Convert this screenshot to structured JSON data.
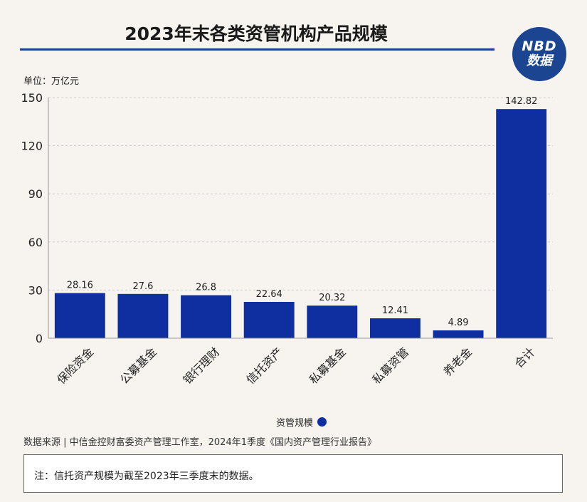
{
  "header": {
    "title": "2023年末各类资管机构产品规模",
    "logo_line1": "NBD",
    "logo_line2": "数据"
  },
  "unit_label": "单位：万亿元",
  "legend_label": "资管规模",
  "source": "数据来源 | 中信金控财富委资产管理工作室，2024年1季度《国内资产管理行业报告》",
  "note": "注：信托资产规模为截至2023年三季度末的数据。",
  "colors": {
    "bar": "#0f2fa0",
    "title_rule": "#1f3f8f",
    "logo": "#1c4591"
  },
  "chart_data": {
    "type": "bar",
    "title": "2023年末各类资管机构产品规模",
    "ylabel": "单位：万亿元",
    "categories": [
      "保险资金",
      "公募基金",
      "银行理财",
      "信托资产",
      "私募基金",
      "私募资管",
      "养老金",
      "合计"
    ],
    "series": [
      {
        "name": "资管规模",
        "values": [
          28.16,
          27.6,
          26.8,
          22.64,
          20.32,
          12.41,
          4.89,
          142.82
        ]
      }
    ],
    "value_labels": [
      "28.16",
      "27.6",
      "26.8",
      "22.64",
      "20.32",
      "12.41",
      "4.89",
      "142.82"
    ],
    "y_ticks": [
      0,
      30,
      60,
      90,
      120,
      150
    ],
    "ylim": [
      0,
      150
    ],
    "grid": true,
    "legend_position": "bottom-center"
  }
}
